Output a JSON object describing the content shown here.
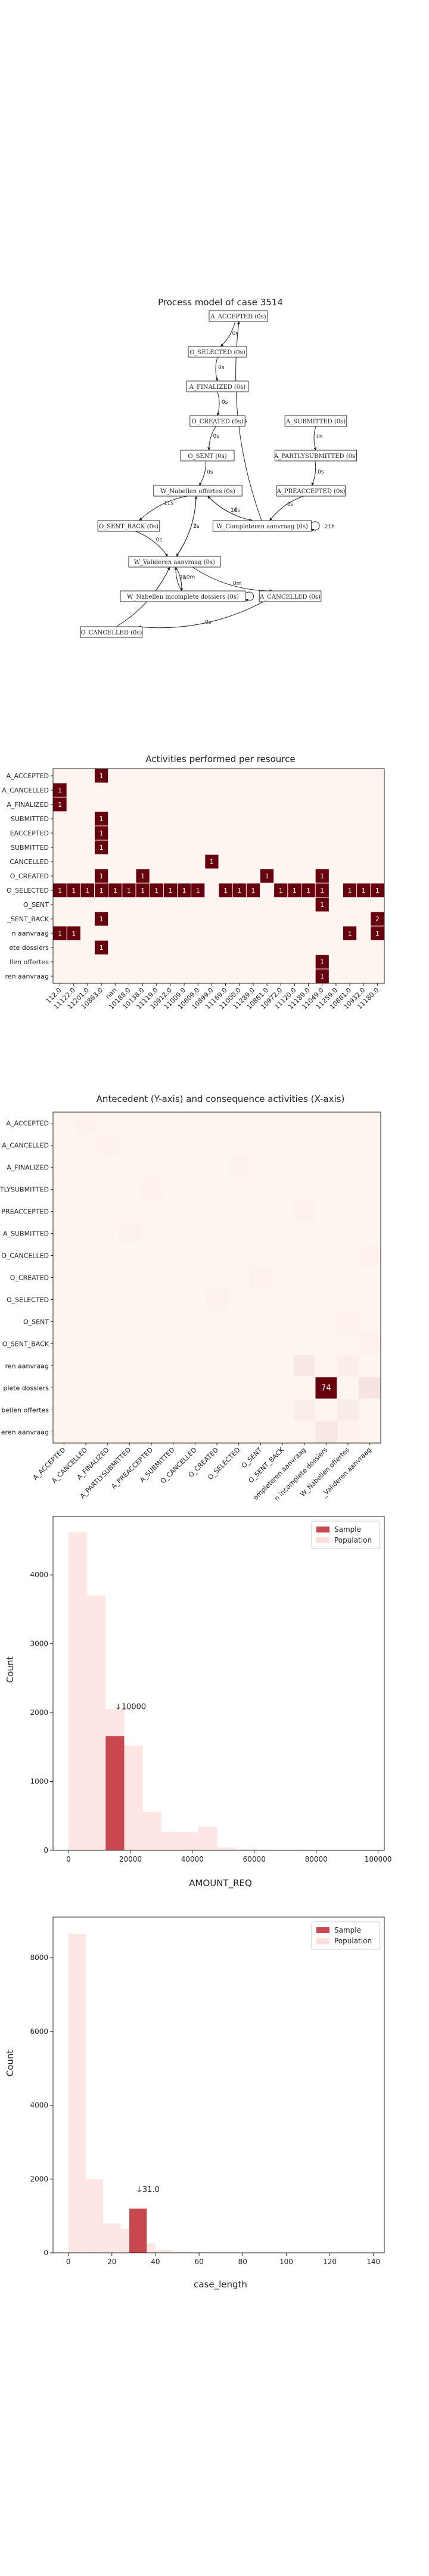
{
  "chart_data": [
    {
      "type": "diagram",
      "title": "Process model of case 3514",
      "nodes": [
        {
          "id": "a_accepted",
          "label": "A_ACCEPTED (0s)"
        },
        {
          "id": "o_selected",
          "label": "O_SELECTED (0s)"
        },
        {
          "id": "a_finalized",
          "label": "A_FINALIZED (0s)"
        },
        {
          "id": "o_created",
          "label": "O_CREATED (0s)"
        },
        {
          "id": "o_sent",
          "label": "O_SENT (0s)"
        },
        {
          "id": "a_submitted",
          "label": "A_SUBMITTED (0s)"
        },
        {
          "id": "a_partlysubmitted",
          "label": "A_PARTLYSUBMITTED (0s)"
        },
        {
          "id": "a_preaccepted",
          "label": "A_PREACCEPTED (0s)"
        },
        {
          "id": "w_nabellen_offertes",
          "label": "W_Nabellen offertes (0s)"
        },
        {
          "id": "w_completeren",
          "label": "W_Completeren aanvraag (0s)"
        },
        {
          "id": "o_sent_back",
          "label": "O_SENT_BACK (0s)"
        },
        {
          "id": "w_valideren",
          "label": "W_Valideren aanvraag (0s)"
        },
        {
          "id": "w_nabellen_incompleet",
          "label": "W_Nabellen incomplete dossiers (0s)"
        },
        {
          "id": "a_cancelled",
          "label": "A_CANCELLED (0s)"
        },
        {
          "id": "o_cancelled",
          "label": "O_CANCELLED (0s)"
        }
      ],
      "edges": [
        {
          "from": "a_accepted",
          "to": "o_selected",
          "label": "0s"
        },
        {
          "from": "o_selected",
          "to": "a_finalized",
          "label": "0s"
        },
        {
          "from": "a_finalized",
          "to": "o_created",
          "label": "0s"
        },
        {
          "from": "o_created",
          "to": "o_sent",
          "label": "0s"
        },
        {
          "from": "o_sent",
          "to": "w_nabellen_offertes",
          "label": "0s"
        },
        {
          "from": "a_submitted",
          "to": "a_partlysubmitted",
          "label": "0s"
        },
        {
          "from": "a_partlysubmitted",
          "to": "a_preaccepted",
          "label": "0s"
        },
        {
          "from": "a_preaccepted",
          "to": "w_completeren",
          "label": "0s"
        },
        {
          "from": "w_completeren",
          "to": "a_accepted",
          "label": "0s"
        },
        {
          "from": "w_nabellen_offertes",
          "to": "o_sent_back",
          "label": "11s"
        },
        {
          "from": "w_nabellen_offertes",
          "to": "w_valideren",
          "label": "7s"
        },
        {
          "from": "w_nabellen_offertes",
          "to": "w_completeren",
          "label": "11s"
        },
        {
          "from": "w_completeren",
          "to": "w_nabellen_offertes",
          "label": "1d"
        },
        {
          "from": "w_completeren",
          "to": "w_completeren",
          "label": "21h"
        },
        {
          "from": "o_sent_back",
          "to": "w_valideren",
          "label": "0s"
        },
        {
          "from": "w_valideren",
          "to": "w_nabellen_offertes",
          "label": "1s"
        },
        {
          "from": "w_valideren",
          "to": "w_nabellen_incompleet",
          "label": "10m"
        },
        {
          "from": "w_valideren",
          "to": "a_cancelled",
          "label": "0m"
        },
        {
          "from": "w_nabellen_incompleet",
          "to": "w_valideren",
          "label": "2h"
        },
        {
          "from": "w_nabellen_incompleet",
          "to": "w_nabellen_incompleet",
          "label": "40s"
        },
        {
          "from": "a_cancelled",
          "to": "o_cancelled",
          "label": "0s"
        },
        {
          "from": "o_cancelled",
          "to": "w_valideren",
          "label": "3s"
        }
      ]
    },
    {
      "type": "heatmap",
      "title": "Activities performed per resource",
      "x_categories": [
        "112.0",
        "11122.0",
        "11201.0",
        "10863.0",
        "nan",
        "10188.0",
        "10138.0",
        "11119.0",
        "10912.0",
        "11009.0",
        "10609.0",
        "10899.0",
        "11169.0",
        "11000.0",
        "11289.0",
        "10861.0",
        "10972.0",
        "11120.0",
        "11189.0",
        "11049.0",
        "11259.0",
        "10881.0",
        "10932.0",
        "11180.0"
      ],
      "y_categories": [
        "A_ACCEPTED",
        "A_CANCELLED",
        "A_FINALIZED",
        "A_PARTLYSUBMITTED",
        "A_PREACCEPTED",
        "A_SUBMITTED",
        "O_CANCELLED",
        "O_CREATED",
        "O_SELECTED",
        "O_SENT",
        "O_SENT_BACK",
        "W_Completeren aanvraag",
        "W_Nabellen incomplete dossiers",
        "W_Nabellen offertes",
        "W_Valideren aanvraag"
      ],
      "y_tick_labels": [
        "A_ACCEPTED",
        "A_CANCELLED",
        "A_FINALIZED",
        "SUBMITTED",
        "EACCEPTED",
        "SUBMITTED",
        "CANCELLED",
        "O_CREATED",
        "O_SELECTED",
        "O_SENT",
        "_SENT_BACK",
        "n aanvraag",
        "ete dossiers",
        "llen offertes",
        "ren aanvraag"
      ],
      "cells": [
        {
          "row": 0,
          "col": 3,
          "value": 1
        },
        {
          "row": 1,
          "col": 0,
          "value": 1
        },
        {
          "row": 2,
          "col": 0,
          "value": 1
        },
        {
          "row": 3,
          "col": 3,
          "value": 1
        },
        {
          "row": 4,
          "col": 3,
          "value": 1
        },
        {
          "row": 5,
          "col": 3,
          "value": 1
        },
        {
          "row": 6,
          "col": 11,
          "value": 1
        },
        {
          "row": 7,
          "col": 3,
          "value": 1
        },
        {
          "row": 7,
          "col": 6,
          "value": 1
        },
        {
          "row": 7,
          "col": 15,
          "value": 1
        },
        {
          "row": 7,
          "col": 19,
          "value": 1
        },
        {
          "row": 8,
          "col": 0,
          "value": 1
        },
        {
          "row": 8,
          "col": 1,
          "value": 1
        },
        {
          "row": 8,
          "col": 2,
          "value": 1
        },
        {
          "row": 8,
          "col": 3,
          "value": 1
        },
        {
          "row": 8,
          "col": 4,
          "value": 1
        },
        {
          "row": 8,
          "col": 5,
          "value": 1
        },
        {
          "row": 8,
          "col": 6,
          "value": 1
        },
        {
          "row": 8,
          "col": 7,
          "value": 1
        },
        {
          "row": 8,
          "col": 8,
          "value": 1
        },
        {
          "row": 8,
          "col": 9,
          "value": 1
        },
        {
          "row": 8,
          "col": 10,
          "value": 1
        },
        {
          "row": 8,
          "col": 12,
          "value": 1
        },
        {
          "row": 8,
          "col": 13,
          "value": 1
        },
        {
          "row": 8,
          "col": 14,
          "value": 1
        },
        {
          "row": 8,
          "col": 16,
          "value": 1
        },
        {
          "row": 8,
          "col": 17,
          "value": 1
        },
        {
          "row": 8,
          "col": 18,
          "value": 1
        },
        {
          "row": 8,
          "col": 19,
          "value": 1
        },
        {
          "row": 8,
          "col": 21,
          "value": 1
        },
        {
          "row": 8,
          "col": 22,
          "value": 1
        },
        {
          "row": 8,
          "col": 23,
          "value": 1
        },
        {
          "row": 9,
          "col": 19,
          "value": 1
        },
        {
          "row": 10,
          "col": 3,
          "value": 1
        },
        {
          "row": 10,
          "col": 23,
          "value": 2
        },
        {
          "row": 11,
          "col": 0,
          "value": 1
        },
        {
          "row": 11,
          "col": 1,
          "value": 1
        },
        {
          "row": 11,
          "col": 21,
          "value": 1
        },
        {
          "row": 11,
          "col": 23,
          "value": 1
        },
        {
          "row": 12,
          "col": 3,
          "value": 1
        },
        {
          "row": 13,
          "col": 19,
          "value": 1
        },
        {
          "row": 14,
          "col": 19,
          "value": 1
        }
      ]
    },
    {
      "type": "heatmap",
      "title": "Antecedent (Y-axis) and consequence activities (X-axis)",
      "x_categories": [
        "A_ACCEPTED",
        "A_CANCELLED",
        "A_FINALIZED",
        "A_PARTLYSUBMITTED",
        "A_PREACCEPTED",
        "A_SUBMITTED",
        "O_CANCELLED",
        "O_CREATED",
        "O_SELECTED",
        "O_SENT",
        "O_SENT_BACK",
        "W_Completeren aanvraag",
        "W_Nabellen incomplete dossiers",
        "W_Nabellen offertes",
        "W_Valideren aanvraag"
      ],
      "y_categories": [
        "A_ACCEPTED",
        "A_CANCELLED",
        "A_FINALIZED",
        "A_PARTLYSUBMITTED",
        "A_PREACCEPTED",
        "A_SUBMITTED",
        "O_CANCELLED",
        "O_CREATED",
        "O_SELECTED",
        "O_SENT",
        "O_SENT_BACK",
        "W_Completeren aanvraag",
        "W_Nabellen incomplete dossiers",
        "W_Nabellen offertes",
        "W_Valideren aanvraag"
      ],
      "y_tick_labels": [
        "A_ACCEPTED",
        "A_CANCELLED",
        "A_FINALIZED",
        "PARTLYSUBMITTED",
        "PREACCEPTED",
        "A_SUBMITTED",
        "O_CANCELLED",
        "O_CREATED",
        "O_SELECTED",
        "O_SENT",
        "O_SENT_BACK",
        "ren aanvraag",
        "plete dossiers",
        "bellen offertes",
        "eren aanvraag"
      ],
      "x_tick_labels": [
        "A_ACCEPTED",
        "A_CANCELLED",
        "A_FINALIZED",
        "A_PARTLYSUBMITTED",
        "A_PREACCEPTED",
        "A_SUBMITTED",
        "O_CANCELLED",
        "O_CREATED",
        "O_SELECTED",
        "O_SENT",
        "O_SENT_BACK",
        "ompleteren aanvraag",
        "n incomplete dossiers",
        "W_Nabellen offertes",
        "_Valideren aanvraag"
      ],
      "cells": [
        {
          "row": 0,
          "col": 1,
          "value": 1
        },
        {
          "row": 1,
          "col": 2,
          "value": 1
        },
        {
          "row": 2,
          "col": 8,
          "value": 1
        },
        {
          "row": 3,
          "col": 4,
          "value": 1
        },
        {
          "row": 4,
          "col": 11,
          "value": 1
        },
        {
          "row": 5,
          "col": 3,
          "value": 1
        },
        {
          "row": 6,
          "col": 14,
          "value": 1
        },
        {
          "row": 7,
          "col": 9,
          "value": 1
        },
        {
          "row": 8,
          "col": 7,
          "value": 1
        },
        {
          "row": 9,
          "col": 13,
          "value": 1
        },
        {
          "row": 10,
          "col": 14,
          "value": 1
        },
        {
          "row": 11,
          "col": 11,
          "value": 4
        },
        {
          "row": 11,
          "col": 13,
          "value": 2
        },
        {
          "row": 12,
          "col": 12,
          "value": 74
        },
        {
          "row": 12,
          "col": 14,
          "value": 5
        },
        {
          "row": 13,
          "col": 11,
          "value": 2
        },
        {
          "row": 13,
          "col": 13,
          "value": 3
        },
        {
          "row": 14,
          "col": 12,
          "value": 4
        },
        {
          "row": 14,
          "col": 13,
          "value": 1
        }
      ]
    },
    {
      "type": "bar",
      "title": "",
      "xlabel": "AMOUNT_REQ",
      "ylabel": "Count",
      "xlim": [
        -5000,
        102000
      ],
      "ylim": [
        0,
        4850
      ],
      "x_ticks": [
        0,
        20000,
        40000,
        60000,
        80000,
        100000
      ],
      "y_ticks": [
        0,
        1000,
        2000,
        3000,
        4000
      ],
      "legend": {
        "placement": "top-right",
        "entries": [
          "Sample",
          "Population"
        ]
      },
      "series": [
        {
          "name": "Population",
          "bin_width": 6000,
          "bins": [
            {
              "x0": 0,
              "count": 4620
            },
            {
              "x0": 6000,
              "count": 3700
            },
            {
              "x0": 12000,
              "count": 2050
            },
            {
              "x0": 18000,
              "count": 1520
            },
            {
              "x0": 24000,
              "count": 560
            },
            {
              "x0": 30000,
              "count": 270
            },
            {
              "x0": 36000,
              "count": 260
            },
            {
              "x0": 42000,
              "count": 340
            },
            {
              "x0": 48000,
              "count": 40
            },
            {
              "x0": 54000,
              "count": 15
            },
            {
              "x0": 60000,
              "count": 10
            },
            {
              "x0": 66000,
              "count": 5
            },
            {
              "x0": 72000,
              "count": 10
            },
            {
              "x0": 78000,
              "count": 5
            },
            {
              "x0": 84000,
              "count": 5
            },
            {
              "x0": 90000,
              "count": 3
            },
            {
              "x0": 96000,
              "count": 3
            }
          ]
        },
        {
          "name": "Sample",
          "bins": [
            {
              "x0": 12000,
              "x1": 18000,
              "count": 1660
            }
          ]
        }
      ],
      "annotation": {
        "text": "↓10000",
        "x": 15000,
        "y": 2050
      }
    },
    {
      "type": "bar",
      "title": "",
      "xlabel": "case_length",
      "ylabel": "Count",
      "xlim": [
        -7,
        145
      ],
      "ylim": [
        0,
        9100
      ],
      "x_ticks": [
        0,
        20,
        40,
        60,
        80,
        100,
        120,
        140
      ],
      "y_ticks": [
        0,
        2000,
        4000,
        6000,
        8000
      ],
      "legend": {
        "placement": "top-right",
        "entries": [
          "Sample",
          "Population"
        ]
      },
      "series": [
        {
          "name": "Population",
          "bin_width": 8,
          "bins": [
            {
              "x0": 0,
              "count": 8650
            },
            {
              "x0": 8,
              "count": 2000
            },
            {
              "x0": 16,
              "count": 800
            },
            {
              "x0": 24,
              "count": 650
            },
            {
              "x0": 32,
              "count": 250
            },
            {
              "x0": 40,
              "count": 80
            },
            {
              "x0": 48,
              "count": 40
            },
            {
              "x0": 56,
              "count": 15
            },
            {
              "x0": 64,
              "count": 10
            },
            {
              "x0": 72,
              "count": 5
            }
          ]
        },
        {
          "name": "Sample",
          "bins": [
            {
              "x0": 28,
              "x1": 36,
              "count": 1200
            }
          ]
        }
      ],
      "annotation": {
        "text": "↓31.0",
        "x": 31,
        "y": 1650
      }
    }
  ],
  "colors": {
    "sample": "#c9474e",
    "population": "#fde0dd",
    "heat_low": "#fff5f0",
    "heat_high": "#67000d",
    "heat_text": "#ffffff"
  }
}
